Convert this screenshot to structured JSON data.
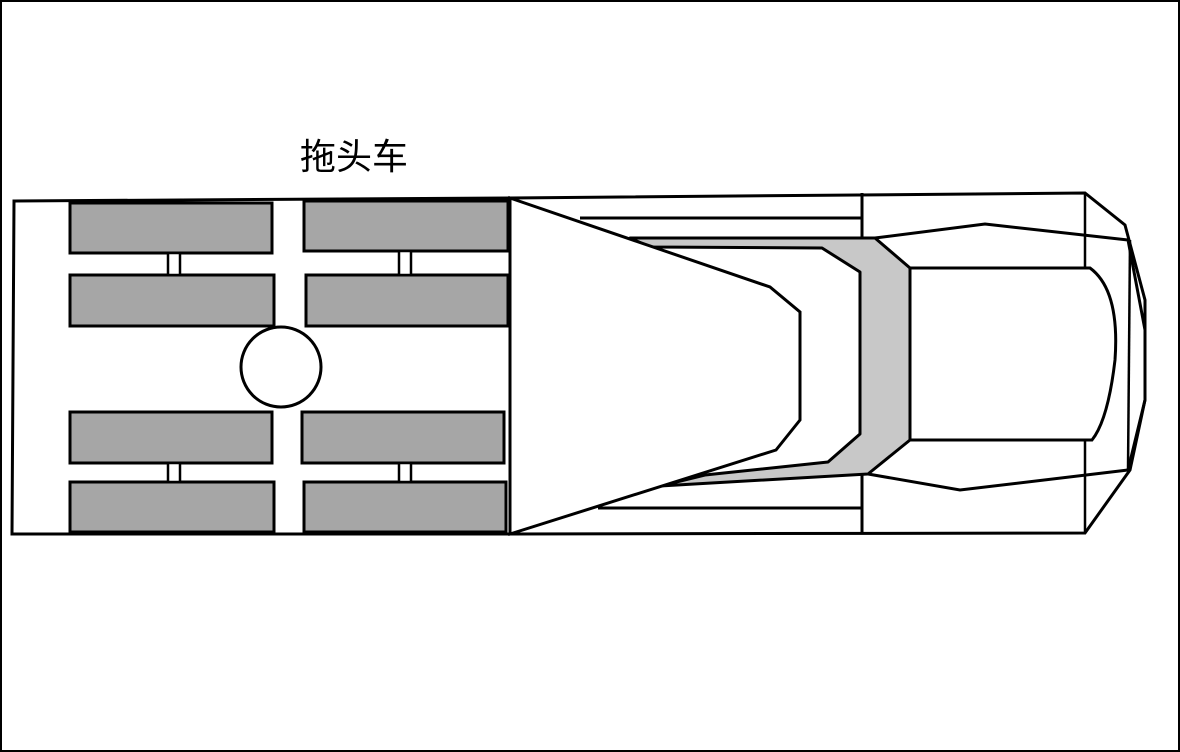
{
  "diagram": {
    "label": "拖头车",
    "colors": {
      "stroke": "#000000",
      "wheel_fill": "#a6a6a6",
      "cab_frame_fill": "#c8c8c8",
      "body_fill": "#ffffff"
    }
  }
}
